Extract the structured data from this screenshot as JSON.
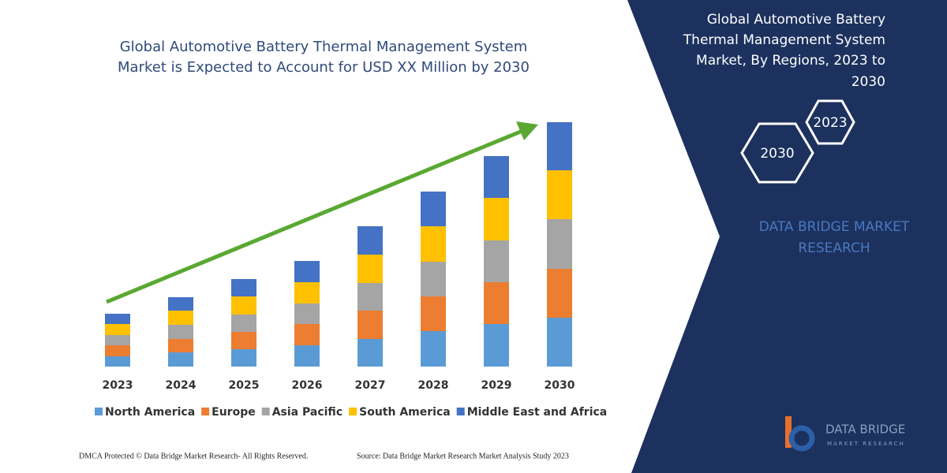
{
  "chart_data": {
    "type": "stacked_bar",
    "title_lines": [
      "Global Automotive Battery Thermal Management System",
      "Market is Expected to Account for USD XX Million by 2030"
    ],
    "categories": [
      "2023",
      "2024",
      "2025",
      "2026",
      "2027",
      "2028",
      "2029",
      "2030"
    ],
    "series": [
      {
        "name": "North America",
        "color": "#5b9bd5",
        "values": [
          13,
          18,
          22,
          27,
          35,
          45,
          54,
          62
        ]
      },
      {
        "name": "Europe",
        "color": "#ed7d31",
        "values": [
          14,
          17,
          22,
          27,
          36,
          44,
          53,
          62
        ]
      },
      {
        "name": "Asia Pacific",
        "color": "#a5a5a5",
        "values": [
          13,
          18,
          22,
          26,
          35,
          44,
          53,
          63
        ]
      },
      {
        "name": "South America",
        "color": "#ffc000",
        "values": [
          14,
          18,
          23,
          27,
          36,
          45,
          54,
          62
        ]
      },
      {
        "name": "Middle East and Africa",
        "color": "#4472c4",
        "values": [
          13,
          17,
          22,
          27,
          36,
          44,
          53,
          61
        ]
      }
    ]
  },
  "panel": {
    "title_lines": [
      "Global Automotive Battery",
      "Thermal Management System",
      "Market, By Regions, 2023 to",
      "2030"
    ],
    "hexagons": [
      "2023",
      "2030"
    ],
    "brand_lines": [
      "DATA BRIDGE MARKET",
      "RESEARCH"
    ],
    "logo": [
      "DATA BRIDGE",
      "MARKET RESEARCH"
    ]
  },
  "footer": {
    "left": "DMCA Protected © Data Bridge Market Research-  All Rights Reserved.",
    "right": "Source: Data Bridge Market Research  Market Analysis Study 2023"
  }
}
